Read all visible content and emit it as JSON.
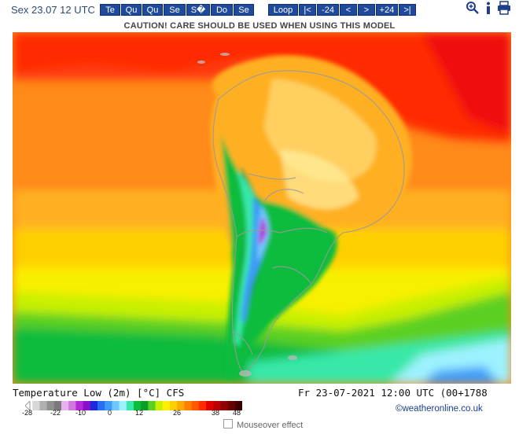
{
  "header": {
    "date_label": "Sex 23.07 12 UTC",
    "days": [
      "Te",
      "Qu",
      "Qu",
      "Se",
      "S�",
      "Do",
      "Se"
    ],
    "nav": [
      "Loop",
      "|<",
      "-24",
      "<",
      ">",
      "+24",
      ">|"
    ],
    "icons": [
      "zoom-icon",
      "info-icon",
      "print-icon"
    ]
  },
  "caution": "CAUTION! CARE SHOULD BE USED WHEN USING THIS MODEL",
  "legend": {
    "title": "Temperature Low (2m) [°C] CFS",
    "valid": "Fr 23-07-2021 12:00 UTC (00+1788",
    "ticks": [
      "-28",
      "-22",
      "-10",
      "0",
      "12",
      "26",
      "38",
      "48"
    ],
    "colors": [
      "#ffffff",
      "#d8d8d8",
      "#b0b0b0",
      "#909090",
      "#7a7a7a",
      "#e6b3ee",
      "#d277e0",
      "#b32ad8",
      "#8a10c8",
      "#1a2ad8",
      "#2a6cf0",
      "#3c9cf8",
      "#6ec8ff",
      "#9ef2ff",
      "#38e8a8",
      "#0cbc3c",
      "#0a9e28",
      "#5cd020",
      "#c8f000",
      "#fff000",
      "#ffd000",
      "#ffaa00",
      "#ff8000",
      "#ff5a00",
      "#ff2a00",
      "#e00000",
      "#b80000",
      "#900000",
      "#6a0000",
      "#3a0000"
    ],
    "credit": "©weatheronline.co.uk",
    "mouseover": "Mouseover effect"
  }
}
